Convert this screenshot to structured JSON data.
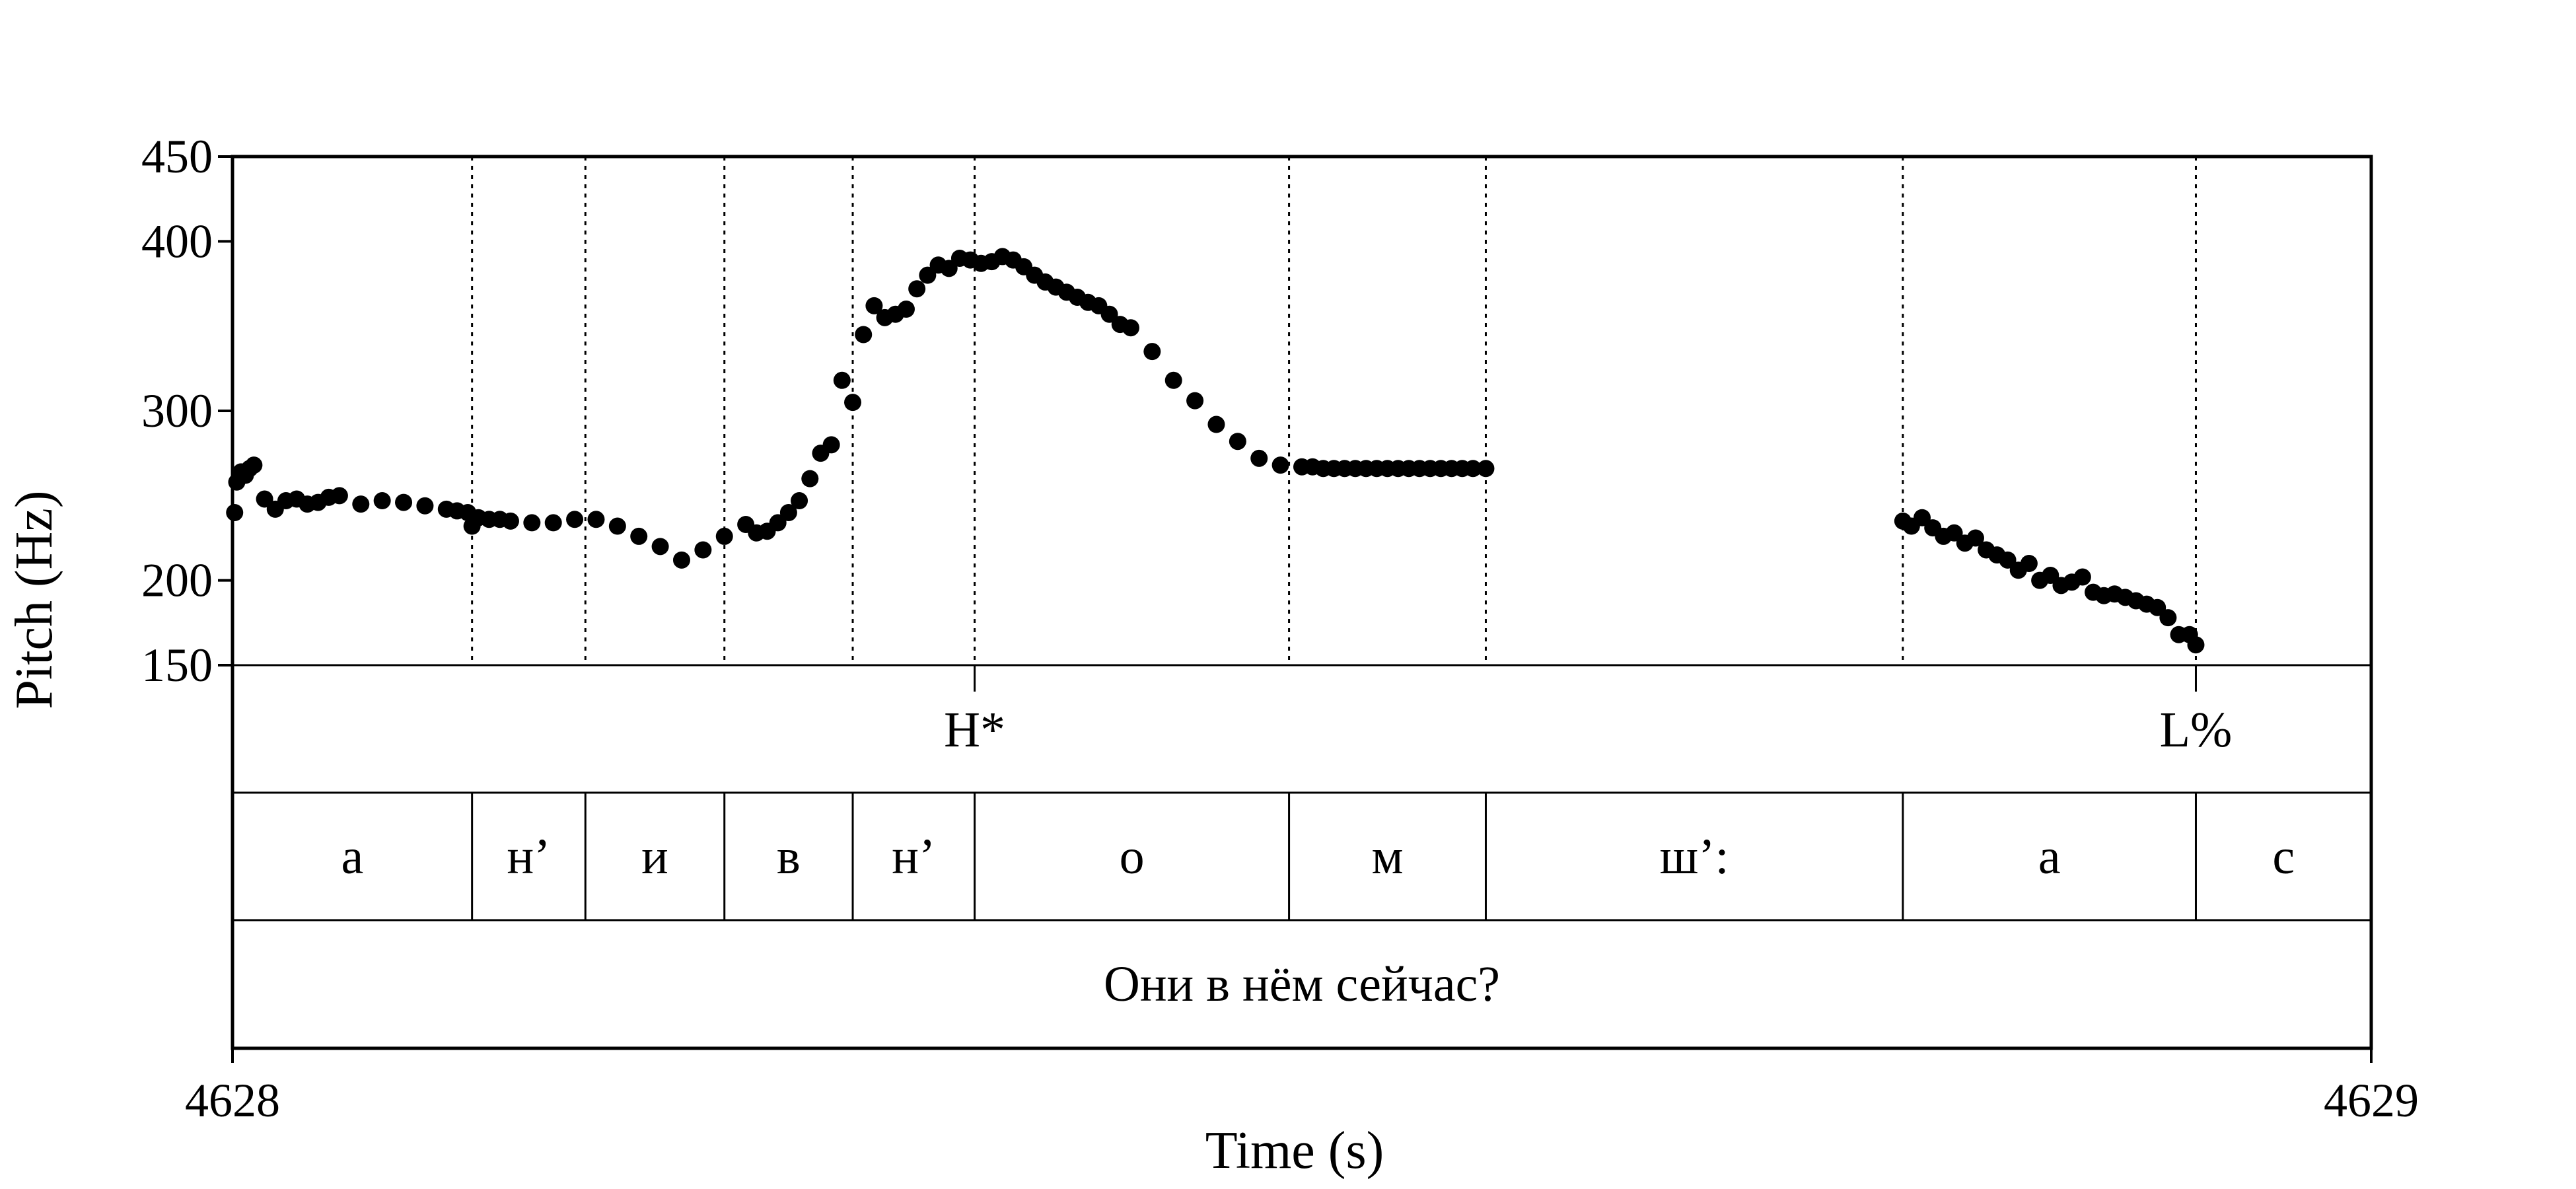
{
  "chart_data": {
    "type": "scatter",
    "xlabel": "Time (s)",
    "ylabel": "Pitch (Hz)",
    "xlim": [
      4628,
      4629
    ],
    "ylim": [
      150,
      450
    ],
    "x_ticks": [
      "4628",
      "4629"
    ],
    "y_ticks": [
      150,
      200,
      300,
      400,
      450
    ],
    "boundaries": [
      4628.112,
      4628.165,
      4628.23,
      4628.29,
      4628.347,
      4628.494,
      4628.586,
      4628.781,
      4628.918
    ],
    "tiers": {
      "tones": [
        {
          "label": "H*",
          "time": 4628.347
        },
        {
          "label": "L%",
          "time": 4628.918
        }
      ],
      "segments": [
        {
          "label": "а",
          "start": 4628.0,
          "end": 4628.112
        },
        {
          "label": "н’",
          "start": 4628.112,
          "end": 4628.165
        },
        {
          "label": "и",
          "start": 4628.165,
          "end": 4628.23
        },
        {
          "label": "в",
          "start": 4628.23,
          "end": 4628.29
        },
        {
          "label": "н’",
          "start": 4628.29,
          "end": 4628.347
        },
        {
          "label": "о",
          "start": 4628.347,
          "end": 4628.494
        },
        {
          "label": "м",
          "start": 4628.494,
          "end": 4628.586
        },
        {
          "label": "ш’:",
          "start": 4628.586,
          "end": 4628.781
        },
        {
          "label": "а",
          "start": 4628.781,
          "end": 4628.918
        },
        {
          "label": "с",
          "start": 4628.918,
          "end": 4629.0
        }
      ],
      "sentence": [
        {
          "label": "Они в нём сейчас?",
          "start": 4628.0,
          "end": 4629.0
        }
      ]
    },
    "series": [
      {
        "x": [
          4628.001,
          4628.002,
          4628.004,
          4628.006,
          4628.008,
          4628.01,
          4628.015,
          4628.02,
          4628.025,
          4628.03,
          4628.035,
          4628.04,
          4628.045,
          4628.05,
          4628.06,
          4628.07,
          4628.08,
          4628.09,
          4628.1,
          4628.105,
          4628.11,
          4628.112,
          4628.115,
          4628.12,
          4628.125,
          4628.13,
          4628.14,
          4628.15,
          4628.16,
          4628.17,
          4628.18,
          4628.19,
          4628.2,
          4628.21,
          4628.22,
          4628.23,
          4628.24,
          4628.245,
          4628.25,
          4628.255,
          4628.26,
          4628.265,
          4628.27,
          4628.275,
          4628.28,
          4628.285,
          4628.29,
          4628.295,
          4628.3,
          4628.305,
          4628.31,
          4628.315,
          4628.32,
          4628.325,
          4628.33,
          4628.335,
          4628.34,
          4628.345,
          4628.35,
          4628.355,
          4628.36,
          4628.365,
          4628.37,
          4628.375,
          4628.38,
          4628.385,
          4628.39,
          4628.395,
          4628.4,
          4628.405,
          4628.41,
          4628.415,
          4628.42,
          4628.43,
          4628.44,
          4628.45,
          4628.46,
          4628.47,
          4628.48,
          4628.49,
          4628.5,
          4628.505,
          4628.51,
          4628.515,
          4628.52,
          4628.525,
          4628.53,
          4628.535,
          4628.54,
          4628.545,
          4628.55,
          4628.555,
          4628.56,
          4628.565,
          4628.57,
          4628.575,
          4628.58,
          4628.586
        ],
        "y": [
          240,
          258,
          264,
          262,
          266,
          268,
          248,
          242,
          247,
          248,
          245,
          246,
          249,
          250,
          245,
          247,
          246,
          244,
          242,
          241,
          240,
          232,
          237,
          236,
          236,
          235,
          234,
          234,
          236,
          236,
          232,
          226,
          220,
          212,
          218,
          226,
          233,
          228,
          229,
          234,
          240,
          247,
          260,
          275,
          280,
          318,
          305,
          345,
          362,
          355,
          357,
          360,
          372,
          380,
          386,
          384,
          390,
          389,
          387,
          388,
          391,
          389,
          385,
          380,
          376,
          373,
          370,
          367,
          364,
          362,
          357,
          351,
          349,
          335,
          318,
          306,
          292,
          282,
          272,
          268,
          267,
          267,
          266,
          266,
          266,
          266,
          266,
          266,
          266,
          266,
          266,
          266,
          266,
          266,
          266,
          266,
          266,
          266
        ]
      },
      {
        "x": [
          4628.781,
          4628.785,
          4628.79,
          4628.795,
          4628.8,
          4628.805,
          4628.81,
          4628.815,
          4628.82,
          4628.825,
          4628.83,
          4628.835,
          4628.84,
          4628.845,
          4628.85,
          4628.855,
          4628.86,
          4628.865,
          4628.87,
          4628.875,
          4628.88,
          4628.885,
          4628.89,
          4628.895,
          4628.9,
          4628.905,
          4628.91,
          4628.915,
          4628.918
        ],
        "y": [
          235,
          232,
          237,
          231,
          226,
          228,
          222,
          225,
          218,
          215,
          212,
          206,
          210,
          200,
          203,
          197,
          199,
          202,
          193,
          191,
          192,
          190,
          188,
          186,
          184,
          178,
          168,
          168,
          162
        ]
      }
    ]
  }
}
